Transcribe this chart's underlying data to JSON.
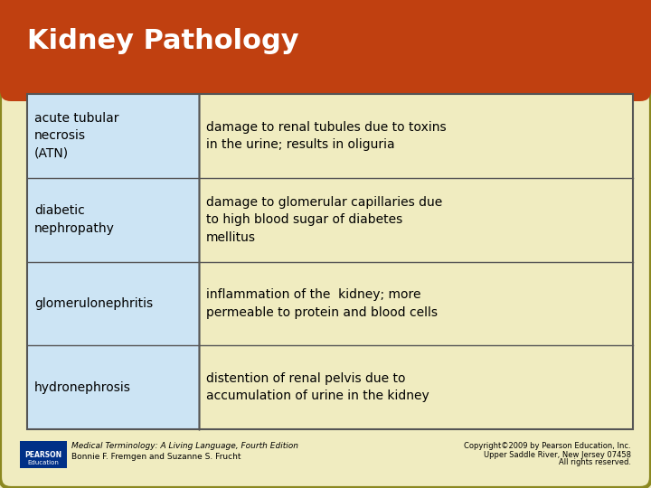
{
  "title": "Kidney Pathology",
  "title_color": "#FFFFFF",
  "title_bg_color": "#C04010",
  "background_color": "#F0ECC0",
  "card_bg_color": "#F0ECC0",
  "card_border_color": "#8B8820",
  "table_left_col_bg": "#CCE4F4",
  "table_right_col_bg": "#F0ECC0",
  "table_border_color": "#555555",
  "rows": [
    {
      "term": "acute tubular\nnecrosis\n(ATN)",
      "definition": "damage to renal tubules due to toxins\nin the urine; results in oliguria"
    },
    {
      "term": "diabetic\nnephropathy",
      "definition": "damage to glomerular capillaries due\nto high blood sugar of diabetes\nmellitus"
    },
    {
      "term": "glomerulonephritis",
      "definition": "inflammation of the  kidney; more\npermeable to protein and blood cells"
    },
    {
      "term": "hydronephrosis",
      "definition": "distention of renal pelvis due to\naccumulation of urine in the kidney"
    }
  ],
  "footer_left_italic": "Medical Terminology: A Living Language, Fourth Edition",
  "footer_left_normal": "Bonnie F. Fremgen and Suzanne S. Frucht",
  "footer_right_line1": "Copyright©2009 by Pearson Education, Inc.",
  "footer_right_line2": "Upper Saddle River, New Jersey 07458",
  "footer_right_line3": "All rights reserved.",
  "pearson_box_color": "#003087",
  "pearson_line1": "PEARSON",
  "pearson_line2": "Education"
}
